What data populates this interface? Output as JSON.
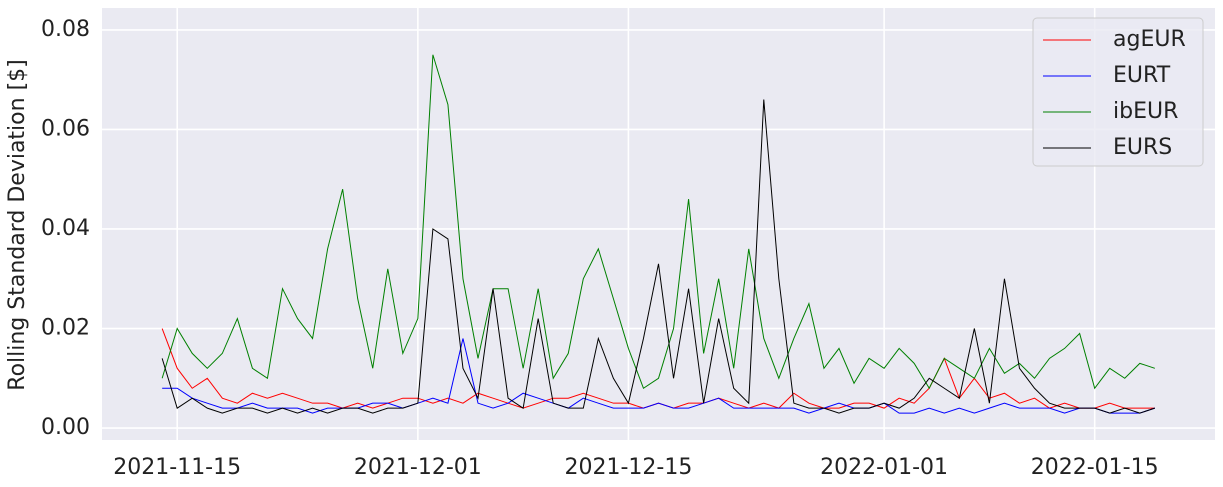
{
  "chart_data": {
    "type": "line",
    "ylabel": "Rolling Standard Deviation [$]",
    "x": [
      "2021-11-14",
      "2021-11-15",
      "2021-11-16",
      "2021-11-17",
      "2021-11-18",
      "2021-11-19",
      "2021-11-20",
      "2021-11-21",
      "2021-11-22",
      "2021-11-23",
      "2021-11-24",
      "2021-11-25",
      "2021-11-26",
      "2021-11-27",
      "2021-11-28",
      "2021-11-29",
      "2021-11-30",
      "2021-12-01",
      "2021-12-02",
      "2021-12-03",
      "2021-12-04",
      "2021-12-05",
      "2021-12-06",
      "2021-12-07",
      "2021-12-08",
      "2021-12-09",
      "2021-12-10",
      "2021-12-11",
      "2021-12-12",
      "2021-12-13",
      "2021-12-14",
      "2021-12-15",
      "2021-12-16",
      "2021-12-17",
      "2021-12-18",
      "2021-12-19",
      "2021-12-20",
      "2021-12-21",
      "2021-12-22",
      "2021-12-23",
      "2021-12-24",
      "2021-12-25",
      "2021-12-26",
      "2021-12-27",
      "2021-12-28",
      "2021-12-29",
      "2021-12-30",
      "2021-12-31",
      "2022-01-01",
      "2022-01-02",
      "2022-01-03",
      "2022-01-04",
      "2022-01-05",
      "2022-01-06",
      "2022-01-07",
      "2022-01-08",
      "2022-01-09",
      "2022-01-10",
      "2022-01-11",
      "2022-01-12",
      "2022-01-13",
      "2022-01-14",
      "2022-01-15",
      "2022-01-16",
      "2022-01-17",
      "2022-01-18",
      "2022-01-19"
    ],
    "series": [
      {
        "name": "agEUR",
        "color": "#ff0000",
        "values": [
          0.02,
          0.012,
          0.008,
          0.01,
          0.006,
          0.005,
          0.007,
          0.006,
          0.007,
          0.006,
          0.005,
          0.005,
          0.004,
          0.005,
          0.004,
          0.005,
          0.006,
          0.006,
          0.005,
          0.006,
          0.005,
          0.007,
          0.006,
          0.005,
          0.004,
          0.005,
          0.006,
          0.006,
          0.007,
          0.006,
          0.005,
          0.005,
          0.004,
          0.005,
          0.004,
          0.005,
          0.005,
          0.006,
          0.005,
          0.004,
          0.005,
          0.004,
          0.007,
          0.005,
          0.004,
          0.004,
          0.005,
          0.005,
          0.004,
          0.006,
          0.005,
          0.008,
          0.014,
          0.006,
          0.01,
          0.006,
          0.007,
          0.005,
          0.006,
          0.004,
          0.005,
          0.004,
          0.004,
          0.005,
          0.004,
          0.004,
          0.004
        ]
      },
      {
        "name": "EURT",
        "color": "#0000ff",
        "values": [
          0.008,
          0.008,
          0.006,
          0.005,
          0.004,
          0.004,
          0.005,
          0.004,
          0.004,
          0.004,
          0.003,
          0.004,
          0.004,
          0.004,
          0.005,
          0.005,
          0.004,
          0.005,
          0.006,
          0.005,
          0.018,
          0.005,
          0.004,
          0.005,
          0.007,
          0.006,
          0.005,
          0.004,
          0.006,
          0.005,
          0.004,
          0.004,
          0.004,
          0.005,
          0.004,
          0.004,
          0.005,
          0.006,
          0.004,
          0.004,
          0.004,
          0.004,
          0.004,
          0.003,
          0.004,
          0.005,
          0.004,
          0.004,
          0.005,
          0.003,
          0.003,
          0.004,
          0.003,
          0.004,
          0.003,
          0.004,
          0.005,
          0.004,
          0.004,
          0.004,
          0.003,
          0.004,
          0.004,
          0.003,
          0.003,
          0.003,
          0.004
        ]
      },
      {
        "name": "ibEUR",
        "color": "#008000",
        "values": [
          0.01,
          0.02,
          0.015,
          0.012,
          0.015,
          0.022,
          0.012,
          0.01,
          0.028,
          0.022,
          0.018,
          0.036,
          0.048,
          0.026,
          0.012,
          0.032,
          0.015,
          0.022,
          0.075,
          0.065,
          0.03,
          0.014,
          0.028,
          0.028,
          0.012,
          0.028,
          0.01,
          0.015,
          0.03,
          0.036,
          0.026,
          0.016,
          0.008,
          0.01,
          0.02,
          0.046,
          0.015,
          0.03,
          0.012,
          0.036,
          0.018,
          0.01,
          0.018,
          0.025,
          0.012,
          0.016,
          0.009,
          0.014,
          0.012,
          0.016,
          0.013,
          0.008,
          0.014,
          0.012,
          0.01,
          0.016,
          0.011,
          0.013,
          0.01,
          0.014,
          0.016,
          0.019,
          0.008,
          0.012,
          0.01,
          0.013,
          0.012
        ]
      },
      {
        "name": "EURS",
        "color": "#000000",
        "values": [
          0.014,
          0.004,
          0.006,
          0.004,
          0.003,
          0.004,
          0.004,
          0.003,
          0.004,
          0.003,
          0.004,
          0.003,
          0.004,
          0.004,
          0.003,
          0.004,
          0.004,
          0.005,
          0.04,
          0.038,
          0.012,
          0.006,
          0.028,
          0.006,
          0.004,
          0.022,
          0.005,
          0.004,
          0.004,
          0.018,
          0.01,
          0.005,
          0.018,
          0.033,
          0.01,
          0.028,
          0.005,
          0.022,
          0.008,
          0.005,
          0.066,
          0.03,
          0.005,
          0.004,
          0.004,
          0.003,
          0.004,
          0.004,
          0.005,
          0.004,
          0.006,
          0.01,
          0.008,
          0.006,
          0.02,
          0.005,
          0.03,
          0.012,
          0.008,
          0.005,
          0.004,
          0.004,
          0.004,
          0.003,
          0.004,
          0.003,
          0.004
        ]
      }
    ],
    "xlim": [
      "2021-11-10",
      "2022-01-23"
    ],
    "xticks": [
      "2021-11-15",
      "2021-12-01",
      "2021-12-15",
      "2022-01-01",
      "2022-01-15"
    ],
    "ylim": [
      -0.0024,
      0.0844
    ],
    "yticks": [
      {
        "value": 0,
        "label": "0.00"
      },
      0.02,
      0.04,
      0.06,
      0.08
    ],
    "grid": true,
    "legend": "upper right"
  }
}
